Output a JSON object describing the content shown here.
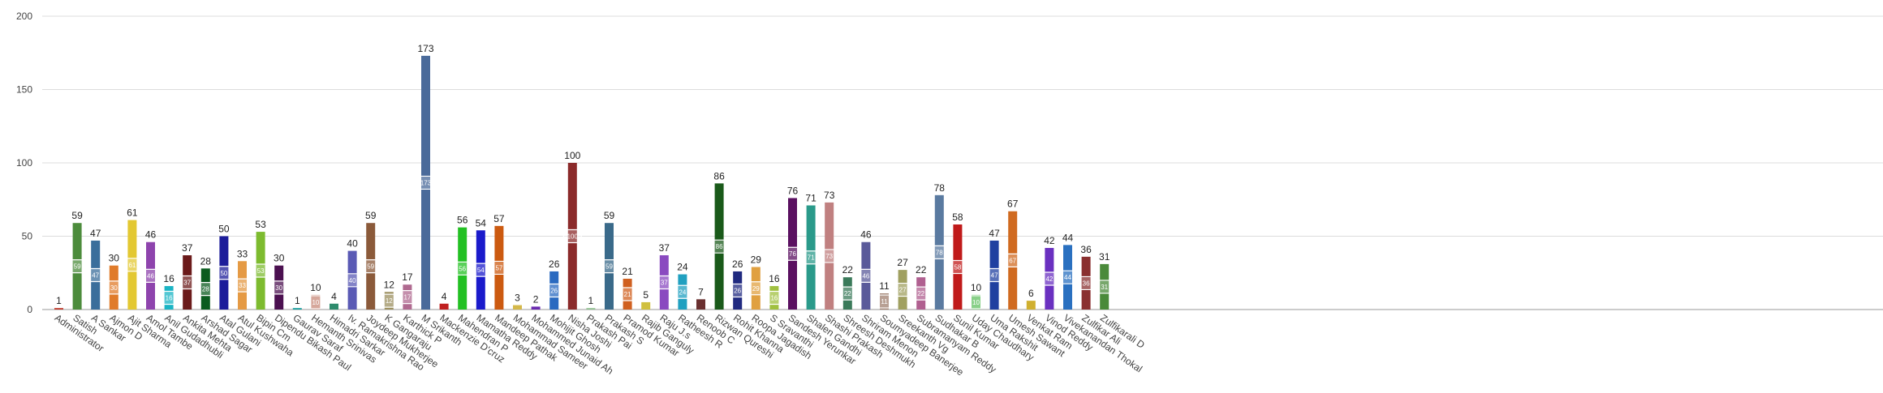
{
  "chart_data": {
    "type": "bar",
    "title": "",
    "xlabel": "",
    "ylabel": "",
    "ylim": [
      0,
      200
    ],
    "yticks": [
      0,
      50,
      100,
      150,
      200
    ],
    "grid": true,
    "legend": "none",
    "categories": [
      "Administrator",
      "Satish",
      "A Sankar",
      "Ajmon D",
      "Ajit Sharma",
      "Amol Tambe",
      "Anil Gudadhubli",
      "Ankita Mehta",
      "Arshad Sagar",
      "Atal Gulani",
      "Atul Kushwaha",
      "Bipin Cm",
      "Dipendu Bikash Paul",
      "Gaurav Saraf",
      "Hemanth Srinivas",
      "Himadri Sarkar",
      "Iv. Ramakrishna Rao",
      "Joydeep Mukherjee",
      "K Gangaraju",
      "Karthick P",
      "M Srikanth",
      "Mackenzie D'cruz",
      "Mahendran P",
      "Mamatha Reddy",
      "Mandeep Pathak",
      "Mohammad Sameer",
      "Mohammed Junaid Ah",
      "Mohijit Ghosh",
      "Nisha Joshi",
      "Prakash Pai",
      "Prakash S",
      "Pramod Kumar",
      "Rajib Ganguly",
      "Raju J.s",
      "Ratheesh R",
      "Renoob C",
      "Rizwan Qureshi",
      "Rohit Khanna",
      "Roopa Jagadish",
      "S Sravanthi",
      "Sandesh Yerunkar",
      "Shalen Gandhi",
      "Shashi Prakash",
      "Shreesh Deshmukh",
      "Shriram Menon",
      "Soumyadeep Banerjee",
      "Sreekanth Vg",
      "Subramanyam Reddy",
      "Sudhakar B",
      "Sunil Kumar",
      "Uday Chaudhary",
      "Uma Rakshit",
      "Umesh Sawant",
      "Venkat Ram",
      "Vinod Reddy",
      "Vivekanandan Thokal",
      "Zulfikar Ali",
      "Zulfikarali D"
    ],
    "values": [
      1,
      59,
      47,
      30,
      61,
      46,
      16,
      37,
      28,
      50,
      33,
      53,
      30,
      1,
      10,
      4,
      40,
      59,
      12,
      17,
      173,
      4,
      56,
      54,
      57,
      3,
      2,
      26,
      100,
      1,
      59,
      21,
      5,
      37,
      24,
      7,
      86,
      26,
      29,
      16,
      76,
      71,
      73,
      22,
      46,
      11,
      27,
      22,
      78,
      58,
      10,
      47,
      67,
      6,
      42,
      44,
      36,
      31
    ],
    "colors": [
      "#c0392b",
      "#4c8c3c",
      "#3a6e9b",
      "#e07b2a",
      "#e3c832",
      "#8e44ad",
      "#1ab4c4",
      "#6b1a1a",
      "#0b5b1f",
      "#1c1c9a",
      "#e59a44",
      "#7dbb2f",
      "#4b1050",
      "#19a0a0",
      "#c98a7a",
      "#2e8b6d",
      "#5a5ab5",
      "#8b5a3a",
      "#9c9060",
      "#b06a90",
      "#4a6a9a",
      "#c02020",
      "#22c022",
      "#1a1acb",
      "#cc5a10",
      "#d4b84a",
      "#6a2ab0",
      "#2a6ac0",
      "#8b2a2a",
      "#90c090",
      "#3a6a8a",
      "#d06020",
      "#d0c040",
      "#8a4ac0",
      "#20a0c0",
      "#6a3030",
      "#1a5a1a",
      "#202a80",
      "#e0a040",
      "#a0c040",
      "#5a1060",
      "#2a9a8a",
      "#c08080",
      "#3a7a5a",
      "#5a5a9a",
      "#a08070",
      "#a0a060",
      "#b06090",
      "#5a7aa0",
      "#c01a1a",
      "#60c060",
      "#2040a0",
      "#d06a20",
      "#d0b030",
      "#6a30c0",
      "#2a70c0",
      "#8a3030",
      "#4a8a3a"
    ]
  }
}
